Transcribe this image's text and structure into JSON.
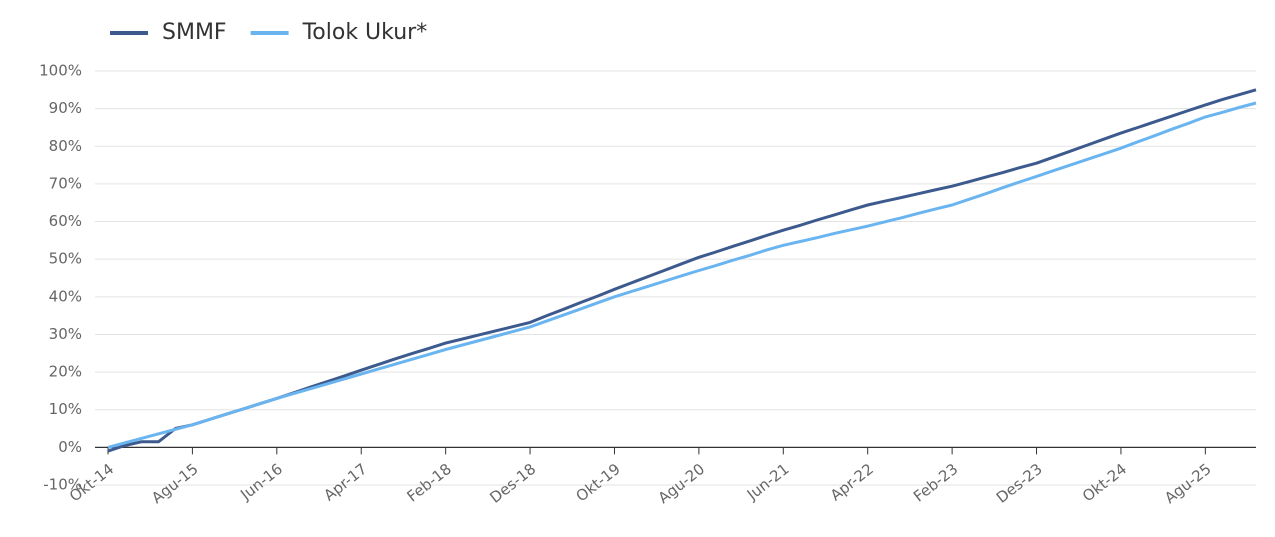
{
  "chart_data": {
    "type": "line",
    "categories": [
      "Okt-14",
      null,
      null,
      null,
      null,
      "Agu-15",
      null,
      null,
      null,
      null,
      "Jun-16",
      null,
      null,
      null,
      null,
      "Apr-17",
      null,
      null,
      null,
      null,
      "Feb-18",
      null,
      null,
      null,
      null,
      "Des-18",
      null,
      null,
      null,
      null,
      "Okt-19",
      null,
      null,
      null,
      null,
      "Agu-20",
      null,
      null,
      null,
      null,
      "Jun-21",
      null,
      null,
      null,
      null,
      "Apr-22",
      null,
      null,
      null,
      null,
      "Feb-23",
      null,
      null,
      null,
      null,
      "Des-23",
      null,
      null,
      null,
      null,
      "Okt-24",
      null,
      null,
      null,
      null,
      "Agu-25",
      null,
      null,
      null
    ],
    "series": [
      {
        "name": "SMMF",
        "color": "#3d5a8e",
        "values": [
          -1,
          0.5,
          1.5,
          1.5,
          5,
          6,
          7.4,
          8.8,
          10.2,
          11.6,
          13,
          14.5,
          16,
          17.5,
          19,
          20.5,
          22,
          23.5,
          24.9,
          26.3,
          27.7,
          28.8,
          29.9,
          31,
          32.1,
          33.2,
          35,
          36.7,
          38.5,
          40.2,
          42,
          43.7,
          45.4,
          47.1,
          48.8,
          50.5,
          51.9,
          53.4,
          54.8,
          56.3,
          57.7,
          59,
          60.4,
          61.7,
          63.1,
          64.4,
          65.4,
          66.4,
          67.4,
          68.4,
          69.4,
          70.6,
          71.8,
          73,
          74.3,
          75.5,
          77.1,
          78.7,
          80.3,
          81.9,
          83.5,
          85,
          86.5,
          88,
          89.5,
          91,
          92.4,
          93.7,
          95
        ]
      },
      {
        "name": "Tolok Ukur*",
        "color": "#6ab4f0",
        "values": [
          0,
          1.2,
          2.4,
          3.6,
          4.8,
          6,
          7.4,
          8.8,
          10.2,
          11.6,
          13,
          14.3,
          15.6,
          16.9,
          18.2,
          19.5,
          20.8,
          22.1,
          23.4,
          24.7,
          26,
          27.2,
          28.4,
          29.6,
          30.8,
          32,
          33.6,
          35.2,
          36.8,
          38.4,
          40,
          41.4,
          42.8,
          44.2,
          45.6,
          47,
          48.3,
          49.7,
          51,
          52.4,
          53.7,
          54.7,
          55.7,
          56.8,
          57.8,
          58.8,
          59.9,
          61,
          62.2,
          63.3,
          64.4,
          65.9,
          67.4,
          69,
          70.5,
          72,
          73.5,
          75,
          76.5,
          78,
          79.5,
          81.2,
          82.8,
          84.5,
          86.1,
          87.8,
          89,
          90.3,
          91.5
        ]
      }
    ],
    "ylim": [
      -10,
      100
    ],
    "yticks": [
      {
        "value": -10,
        "label": "-10%"
      },
      {
        "value": 0,
        "label": "0%"
      },
      {
        "value": 10,
        "label": "10%"
      },
      {
        "value": 20,
        "label": "20%"
      },
      {
        "value": 30,
        "label": "30%"
      },
      {
        "value": 40,
        "label": "40%"
      },
      {
        "value": 50,
        "label": "50%"
      },
      {
        "value": 60,
        "label": "60%"
      },
      {
        "value": 70,
        "label": "70%"
      },
      {
        "value": 80,
        "label": "80%"
      },
      {
        "value": 90,
        "label": "90%"
      },
      {
        "value": 100,
        "label": "100%"
      }
    ],
    "grid": true,
    "legend": "top-left"
  }
}
